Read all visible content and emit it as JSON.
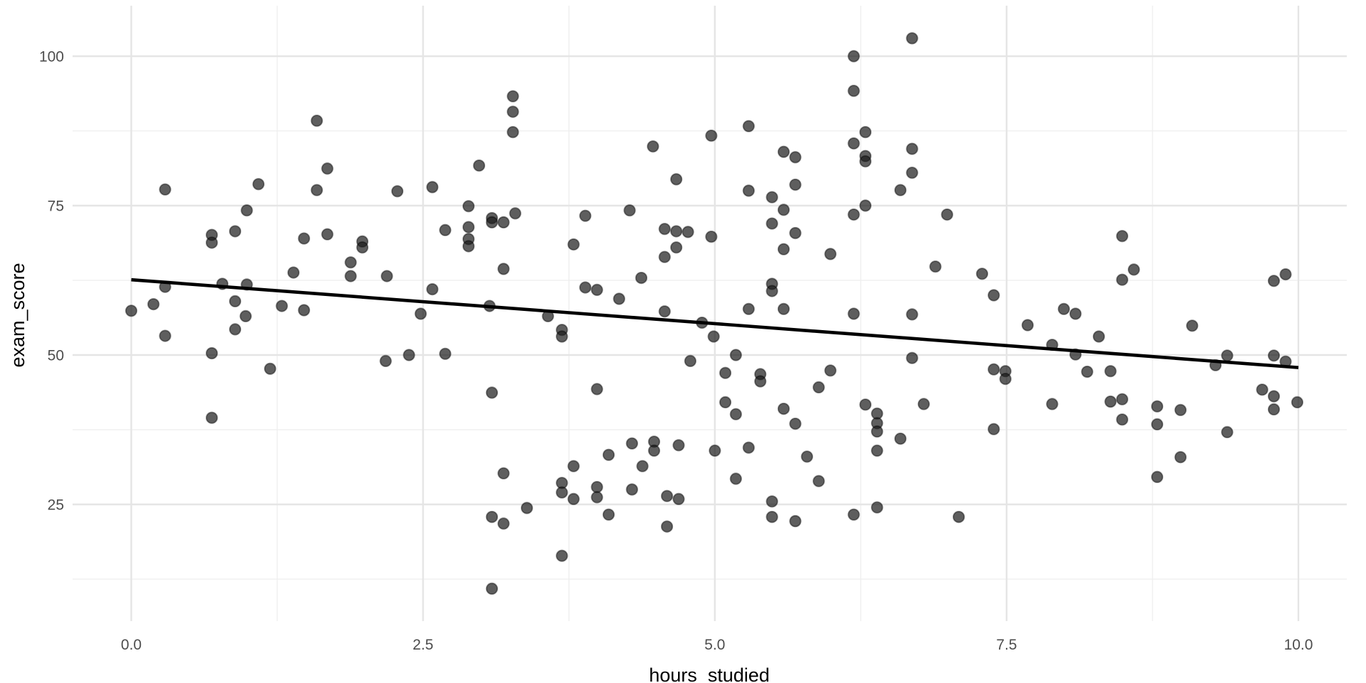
{
  "chart_data": {
    "type": "scatter",
    "title": "",
    "xlabel": "hours_studied",
    "ylabel": "exam_score",
    "x_ticks": [
      0.0,
      2.5,
      5.0,
      7.5,
      10.0
    ],
    "x_tick_labels": [
      "0.0",
      "2.5",
      "5.0",
      "7.5",
      "10.0"
    ],
    "x_minor_ticks": [
      1.25,
      3.75,
      6.25,
      8.75
    ],
    "y_ticks": [
      25,
      50,
      75,
      100
    ],
    "y_tick_labels": [
      "25",
      "50",
      "75",
      "100"
    ],
    "y_minor_ticks": [
      12.5,
      37.5,
      62.5,
      87.5
    ],
    "xlim": [
      -0.5,
      10.45
    ],
    "ylim": [
      5.5,
      108.5
    ],
    "grid": "major+minor",
    "legend": "none",
    "background": "#ffffff",
    "colors": {
      "point": "#1a1a1a",
      "point_opacity": 0.7,
      "grid_major": "#e5e5e5",
      "grid_minor": "#eeeeee",
      "tick_label": "#4d4d4d",
      "axis_title": "#000000",
      "trend_line": "#000000"
    },
    "trend_line": {
      "type": "linear",
      "x0": 0.0,
      "y0": 62.6,
      "x1": 10.0,
      "y1": 47.9
    },
    "points": [
      [
        0.0,
        57.4
      ],
      [
        0.19,
        58.5
      ],
      [
        0.29,
        77.7
      ],
      [
        0.29,
        61.4
      ],
      [
        0.29,
        53.2
      ],
      [
        0.69,
        70.1
      ],
      [
        0.69,
        68.8
      ],
      [
        0.69,
        50.3
      ],
      [
        0.69,
        39.5
      ],
      [
        0.78,
        61.9
      ],
      [
        0.89,
        70.7
      ],
      [
        0.89,
        59.0
      ],
      [
        0.89,
        54.3
      ],
      [
        0.98,
        56.5
      ],
      [
        0.99,
        74.2
      ],
      [
        0.99,
        61.8
      ],
      [
        1.09,
        78.6
      ],
      [
        1.19,
        47.7
      ],
      [
        1.29,
        58.2
      ],
      [
        1.39,
        63.8
      ],
      [
        1.48,
        69.5
      ],
      [
        1.48,
        57.5
      ],
      [
        1.59,
        89.2
      ],
      [
        1.59,
        77.6
      ],
      [
        1.68,
        81.2
      ],
      [
        1.68,
        70.2
      ],
      [
        1.88,
        65.5
      ],
      [
        1.88,
        63.2
      ],
      [
        1.98,
        69.0
      ],
      [
        1.98,
        68.0
      ],
      [
        2.18,
        49.0
      ],
      [
        2.19,
        63.2
      ],
      [
        2.28,
        77.4
      ],
      [
        2.38,
        50.0
      ],
      [
        2.48,
        56.9
      ],
      [
        2.58,
        78.1
      ],
      [
        2.58,
        61.0
      ],
      [
        2.69,
        70.9
      ],
      [
        2.69,
        50.2
      ],
      [
        2.89,
        74.9
      ],
      [
        2.89,
        71.4
      ],
      [
        2.89,
        69.4
      ],
      [
        2.89,
        68.2
      ],
      [
        2.98,
        81.7
      ],
      [
        3.07,
        58.2
      ],
      [
        3.09,
        72.9
      ],
      [
        3.09,
        72.2
      ],
      [
        3.09,
        43.7
      ],
      [
        3.09,
        22.9
      ],
      [
        3.09,
        10.9
      ],
      [
        3.19,
        72.2
      ],
      [
        3.19,
        64.4
      ],
      [
        3.19,
        30.2
      ],
      [
        3.19,
        21.8
      ],
      [
        3.27,
        93.3
      ],
      [
        3.27,
        90.7
      ],
      [
        3.27,
        87.3
      ],
      [
        3.29,
        73.7
      ],
      [
        3.39,
        24.4
      ],
      [
        3.57,
        56.5
      ],
      [
        3.69,
        54.2
      ],
      [
        3.69,
        53.1
      ],
      [
        3.69,
        28.6
      ],
      [
        3.69,
        27.0
      ],
      [
        3.69,
        16.4
      ],
      [
        3.79,
        68.5
      ],
      [
        3.79,
        31.4
      ],
      [
        3.79,
        25.9
      ],
      [
        3.89,
        73.3
      ],
      [
        3.89,
        61.3
      ],
      [
        3.99,
        60.9
      ],
      [
        3.99,
        44.3
      ],
      [
        3.99,
        27.9
      ],
      [
        3.99,
        26.2
      ],
      [
        4.09,
        33.3
      ],
      [
        4.09,
        23.3
      ],
      [
        4.18,
        59.4
      ],
      [
        4.27,
        74.2
      ],
      [
        4.29,
        35.2
      ],
      [
        4.29,
        27.5
      ],
      [
        4.37,
        62.9
      ],
      [
        4.38,
        31.4
      ],
      [
        4.47,
        84.9
      ],
      [
        4.48,
        35.5
      ],
      [
        4.48,
        34.0
      ],
      [
        4.57,
        71.1
      ],
      [
        4.57,
        66.4
      ],
      [
        4.57,
        57.3
      ],
      [
        4.59,
        26.4
      ],
      [
        4.59,
        21.3
      ],
      [
        4.67,
        79.4
      ],
      [
        4.67,
        70.7
      ],
      [
        4.67,
        68.0
      ],
      [
        4.69,
        34.9
      ],
      [
        4.69,
        25.9
      ],
      [
        4.77,
        70.6
      ],
      [
        4.79,
        49.0
      ],
      [
        4.89,
        55.4
      ],
      [
        4.97,
        86.7
      ],
      [
        4.97,
        69.8
      ],
      [
        4.99,
        53.1
      ],
      [
        5.0,
        34.0
      ],
      [
        5.09,
        47.0
      ],
      [
        5.09,
        42.1
      ],
      [
        5.18,
        50.0
      ],
      [
        5.18,
        40.1
      ],
      [
        5.18,
        29.3
      ],
      [
        5.29,
        88.3
      ],
      [
        5.29,
        77.5
      ],
      [
        5.29,
        57.7
      ],
      [
        5.29,
        34.5
      ],
      [
        5.39,
        46.8
      ],
      [
        5.39,
        45.6
      ],
      [
        5.49,
        76.4
      ],
      [
        5.49,
        72.0
      ],
      [
        5.49,
        61.9
      ],
      [
        5.49,
        60.7
      ],
      [
        5.49,
        25.5
      ],
      [
        5.49,
        22.9
      ],
      [
        5.59,
        84.0
      ],
      [
        5.59,
        74.3
      ],
      [
        5.59,
        67.7
      ],
      [
        5.59,
        57.7
      ],
      [
        5.59,
        41.0
      ],
      [
        5.69,
        83.1
      ],
      [
        5.69,
        78.5
      ],
      [
        5.69,
        70.4
      ],
      [
        5.69,
        38.5
      ],
      [
        5.69,
        22.2
      ],
      [
        5.79,
        33.0
      ],
      [
        5.89,
        44.6
      ],
      [
        5.89,
        28.9
      ],
      [
        5.99,
        66.9
      ],
      [
        5.99,
        47.4
      ],
      [
        6.19,
        100.0
      ],
      [
        6.19,
        94.2
      ],
      [
        6.19,
        85.4
      ],
      [
        6.19,
        73.5
      ],
      [
        6.19,
        56.9
      ],
      [
        6.19,
        23.3
      ],
      [
        6.29,
        87.3
      ],
      [
        6.29,
        83.3
      ],
      [
        6.29,
        82.4
      ],
      [
        6.29,
        75.0
      ],
      [
        6.29,
        41.7
      ],
      [
        6.39,
        40.2
      ],
      [
        6.39,
        38.6
      ],
      [
        6.39,
        37.2
      ],
      [
        6.39,
        34.0
      ],
      [
        6.39,
        24.5
      ],
      [
        6.59,
        77.6
      ],
      [
        6.59,
        36.0
      ],
      [
        6.69,
        103.0
      ],
      [
        6.69,
        84.5
      ],
      [
        6.69,
        80.5
      ],
      [
        6.69,
        56.8
      ],
      [
        6.69,
        49.5
      ],
      [
        6.79,
        41.8
      ],
      [
        6.89,
        64.8
      ],
      [
        6.99,
        73.5
      ],
      [
        7.09,
        22.9
      ],
      [
        7.29,
        63.6
      ],
      [
        7.39,
        60.0
      ],
      [
        7.39,
        47.6
      ],
      [
        7.39,
        37.6
      ],
      [
        7.49,
        47.3
      ],
      [
        7.49,
        46.0
      ],
      [
        7.68,
        55.0
      ],
      [
        7.89,
        51.7
      ],
      [
        7.89,
        41.8
      ],
      [
        7.99,
        57.7
      ],
      [
        8.09,
        56.9
      ],
      [
        8.09,
        50.1
      ],
      [
        8.19,
        47.2
      ],
      [
        8.29,
        53.1
      ],
      [
        8.39,
        47.3
      ],
      [
        8.39,
        42.2
      ],
      [
        8.49,
        69.9
      ],
      [
        8.49,
        62.6
      ],
      [
        8.49,
        42.6
      ],
      [
        8.49,
        39.2
      ],
      [
        8.59,
        64.3
      ],
      [
        8.79,
        41.4
      ],
      [
        8.79,
        38.4
      ],
      [
        8.79,
        29.6
      ],
      [
        8.99,
        40.8
      ],
      [
        8.99,
        32.9
      ],
      [
        9.09,
        54.9
      ],
      [
        9.29,
        48.3
      ],
      [
        9.39,
        49.9
      ],
      [
        9.39,
        37.1
      ],
      [
        9.69,
        44.2
      ],
      [
        9.79,
        62.4
      ],
      [
        9.79,
        49.9
      ],
      [
        9.79,
        43.1
      ],
      [
        9.79,
        40.9
      ],
      [
        9.89,
        63.5
      ],
      [
        9.89,
        48.9
      ],
      [
        9.99,
        42.1
      ]
    ]
  }
}
